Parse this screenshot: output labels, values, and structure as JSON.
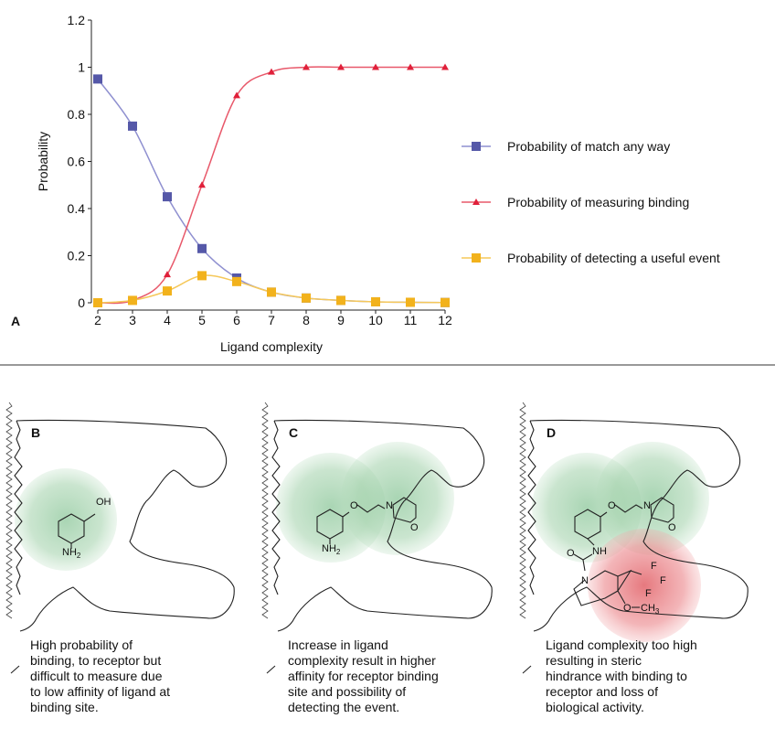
{
  "chart_data": {
    "type": "line",
    "x_label": "Ligand complexity",
    "y_label": "Probability",
    "x": [
      2,
      3,
      4,
      5,
      6,
      7,
      8,
      9,
      10,
      11,
      12
    ],
    "xlim": [
      2,
      12
    ],
    "xticks": [
      2,
      3,
      4,
      5,
      6,
      7,
      8,
      9,
      10,
      11,
      12
    ],
    "ylim": [
      0,
      1.2
    ],
    "yticks": [
      0,
      0.2,
      0.4,
      0.6,
      0.8,
      1,
      1.2
    ],
    "series": [
      {
        "name": "Probability of match any way",
        "color": "#5558a8",
        "line_color": "#8f90d0",
        "marker": "square",
        "values": [
          0.95,
          0.75,
          0.45,
          0.23,
          0.105,
          0.045,
          0.02,
          0.01,
          0.004,
          0.002,
          0.001
        ]
      },
      {
        "name": "Probability of measuring binding",
        "color": "#e0203a",
        "line_color": "#e8586a",
        "marker": "triangle",
        "values": [
          0,
          0.01,
          0.12,
          0.5,
          0.88,
          0.98,
          1,
          1,
          1,
          1,
          1
        ]
      },
      {
        "name": "Probability of detecting a useful event",
        "color": "#f2b21c",
        "line_color": "#f5c85a",
        "marker": "square",
        "values": [
          0,
          0.01,
          0.05,
          0.115,
          0.09,
          0.045,
          0.02,
          0.01,
          0.004,
          0.002,
          0.001
        ]
      }
    ],
    "legend": "right"
  },
  "panel_label": "A",
  "panels": [
    {
      "label": "B",
      "atoms": [
        "OH",
        "NH",
        "2"
      ],
      "caption": [
        "High probability of",
        "binding, to receptor but",
        "difficult to measure due",
        "to low affinity of ligand at",
        "binding site."
      ]
    },
    {
      "label": "C",
      "atoms": [
        "O",
        "N",
        "O",
        "NH",
        "2"
      ],
      "caption": [
        "Increase in ligand",
        "complexity result in higher",
        "affinity for receptor binding",
        "site and possibility of",
        "detecting the event."
      ]
    },
    {
      "label": "D",
      "atoms": [
        "O",
        "N",
        "O",
        "O",
        "NH",
        "N",
        "F",
        "F",
        "F",
        "O",
        "CH",
        "3"
      ],
      "caption": [
        "Ligand complexity too high",
        "resulting in steric",
        "hindrance with binding to",
        "receptor and loss of",
        "biological activity."
      ]
    }
  ]
}
